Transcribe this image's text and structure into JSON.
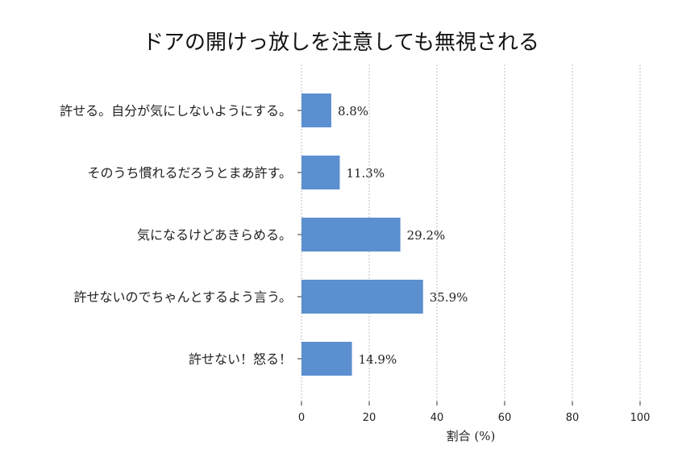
{
  "chart_data": {
    "type": "bar",
    "orientation": "horizontal",
    "title": "ドアの開けっ放しを注意しても無視される",
    "xlabel": "割合 (%)",
    "ylabel": "",
    "categories": [
      "許せる。自分が気にしないようにする。",
      "そのうち慣れるだろうとまあ許す。",
      "気になるけどあきらめる。",
      "許せないのでちゃんとするよう言う。",
      "許せない！怒る！"
    ],
    "values": [
      8.8,
      11.3,
      29.2,
      35.9,
      14.9
    ],
    "data_labels": [
      "8.8%",
      "11.3%",
      "29.2%",
      "35.9%",
      "14.9%"
    ],
    "xlim": [
      0,
      100
    ],
    "xticks": [
      0,
      20,
      40,
      60,
      80,
      100
    ],
    "xtick_labels": [
      "0",
      "20",
      "40",
      "60",
      "80",
      "100"
    ],
    "grid": "x-dashed",
    "bar_color": "#5b8fd0"
  }
}
